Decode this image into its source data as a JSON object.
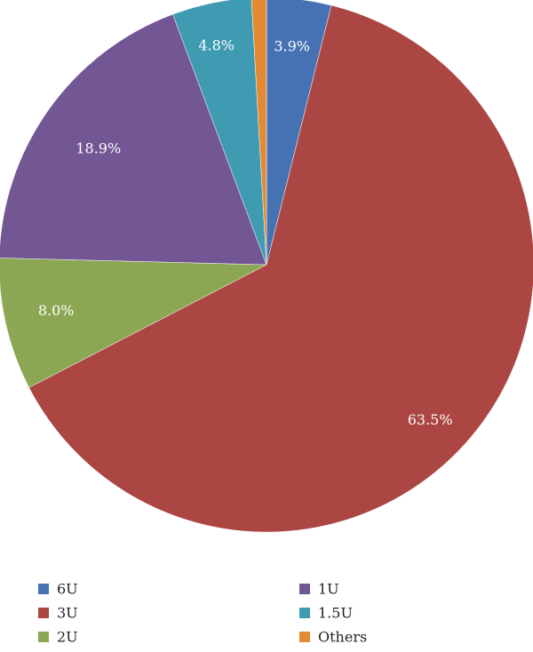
{
  "chart_data": {
    "type": "pie",
    "title": "",
    "start_angle_deg": 0,
    "direction": "clockwise",
    "legend_position": "bottom",
    "series": [
      {
        "name": "6U",
        "value": 3.9,
        "label": "3.9%",
        "color": "#4671b3",
        "show_label": true
      },
      {
        "name": "3U",
        "value": 63.5,
        "label": "63.5%",
        "color": "#ab4643",
        "show_label": true
      },
      {
        "name": "2U",
        "value": 8.0,
        "label": "8.0%",
        "color": "#8ca754",
        "show_label": true
      },
      {
        "name": "1U",
        "value": 18.9,
        "label": "18.9%",
        "color": "#735795",
        "show_label": true
      },
      {
        "name": "1.5U",
        "value": 4.8,
        "label": "4.8%",
        "color": "#3f9bb2",
        "show_label": true
      },
      {
        "name": "Others",
        "value": 0.9,
        "label": "",
        "color": "#e38a35",
        "show_label": false
      }
    ],
    "legend_order": [
      "6U",
      "1U",
      "3U",
      "1.5U",
      "2U",
      "Others"
    ]
  }
}
